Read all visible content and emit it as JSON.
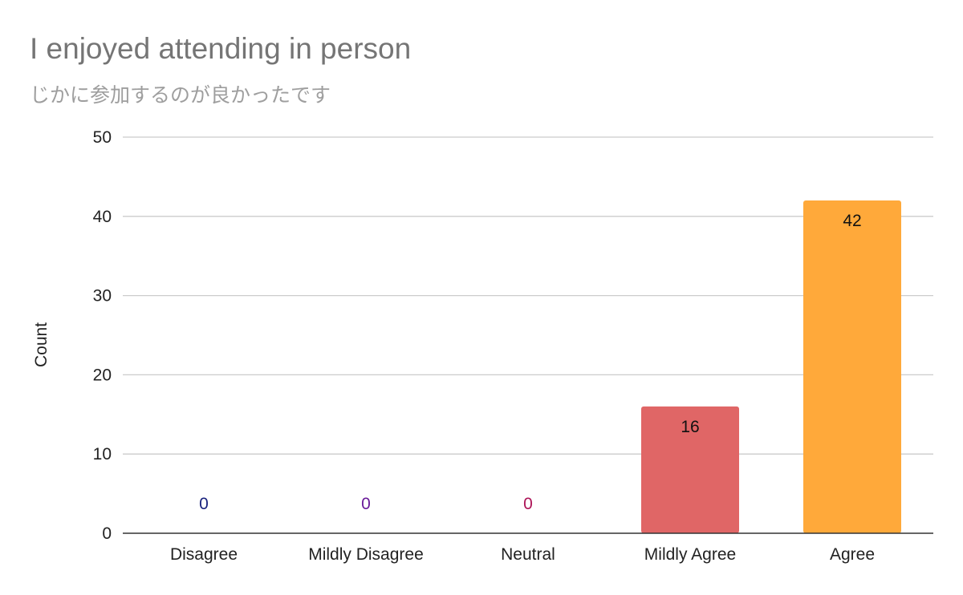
{
  "chart_data": {
    "type": "bar",
    "title": "I enjoyed attending in person",
    "subtitle": "じかに参加するのが良かったです",
    "xlabel": "",
    "ylabel": "Count",
    "categories": [
      "Disagree",
      "Mildly Disagree",
      "Neutral",
      "Mildly Agree",
      "Agree"
    ],
    "values": [
      0,
      0,
      0,
      16,
      42
    ],
    "data_labels": [
      "0",
      "0",
      "0",
      "16",
      "42"
    ],
    "bar_colors": [
      "#1a237e",
      "#6a1b9a",
      "#ad1457",
      "#e06666",
      "#ffa93a"
    ],
    "data_label_colors": [
      "#1a237e",
      "#6a1b9a",
      "#ad1457",
      "#111111",
      "#111111"
    ],
    "ylim": [
      0,
      50
    ],
    "yticks": [
      0,
      10,
      20,
      30,
      40,
      50
    ],
    "grid": true,
    "legend": "none"
  }
}
